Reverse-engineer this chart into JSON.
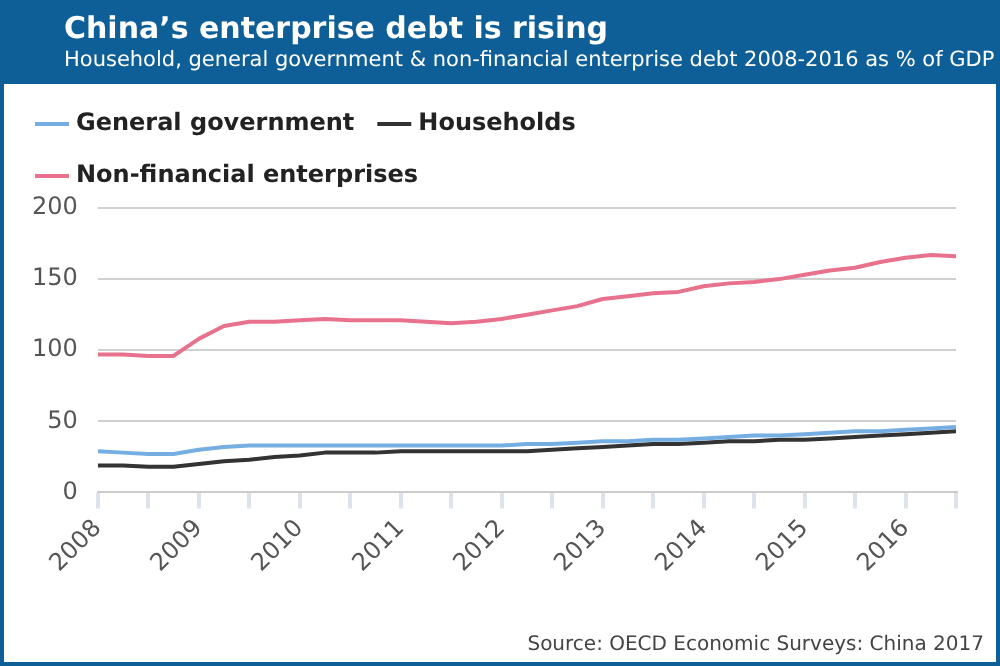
{
  "chart_data": {
    "type": "line",
    "title": "China’s enterprise debt is rising",
    "subtitle": "Household, general government & non-financial enterprise debt 2008-2016 as % of GDP",
    "x": [
      2008,
      2008.25,
      2008.5,
      2008.75,
      2009,
      2009.25,
      2009.5,
      2009.75,
      2010,
      2010.25,
      2010.5,
      2010.75,
      2011,
      2011.25,
      2011.5,
      2011.75,
      2012,
      2012.25,
      2012.5,
      2012.75,
      2013,
      2013.25,
      2013.5,
      2013.75,
      2014,
      2014.25,
      2014.5,
      2014.75,
      2015,
      2015.25,
      2015.5,
      2015.75,
      2016,
      2016.25,
      2016.5
    ],
    "series": [
      {
        "name": "General government",
        "color": "#75aee2",
        "values": [
          29,
          28,
          27,
          27,
          30,
          32,
          33,
          33,
          33,
          33,
          33,
          33,
          33,
          33,
          33,
          33,
          33,
          34,
          34,
          35,
          36,
          36,
          37,
          37,
          38,
          39,
          40,
          40,
          41,
          42,
          43,
          43,
          44,
          45,
          46
        ]
      },
      {
        "name": "Households",
        "color": "#333333",
        "values": [
          19,
          19,
          18,
          18,
          20,
          22,
          23,
          25,
          26,
          28,
          28,
          28,
          29,
          29,
          29,
          29,
          29,
          29,
          30,
          31,
          32,
          33,
          34,
          34,
          35,
          36,
          36,
          37,
          37,
          38,
          39,
          40,
          41,
          42,
          43
        ]
      },
      {
        "name": "Non-financial enterprises",
        "color": "#e8718d",
        "values": [
          97,
          97,
          96,
          96,
          108,
          117,
          120,
          120,
          121,
          122,
          121,
          121,
          121,
          120,
          119,
          120,
          122,
          125,
          128,
          131,
          136,
          138,
          140,
          141,
          145,
          147,
          148,
          150,
          153,
          156,
          158,
          162,
          165,
          167,
          166
        ]
      }
    ],
    "xlim": [
      2008,
      2016.5
    ],
    "xticks": [
      {
        "value": 2008,
        "label": "2008"
      },
      {
        "value": 2008.5,
        "label": null
      },
      {
        "value": 2009,
        "label": "2009"
      },
      {
        "value": 2009.5,
        "label": null
      },
      {
        "value": 2010,
        "label": "2010"
      },
      {
        "value": 2010.5,
        "label": null
      },
      {
        "value": 2011,
        "label": "2011"
      },
      {
        "value": 2011.5,
        "label": null
      },
      {
        "value": 2012,
        "label": "2012"
      },
      {
        "value": 2012.5,
        "label": null
      },
      {
        "value": 2013,
        "label": "2013"
      },
      {
        "value": 2013.5,
        "label": null
      },
      {
        "value": 2014,
        "label": "2014"
      },
      {
        "value": 2014.5,
        "label": null
      },
      {
        "value": 2015,
        "label": "2015"
      },
      {
        "value": 2015.5,
        "label": null
      },
      {
        "value": 2016,
        "label": "2016"
      },
      {
        "value": 2016.5,
        "label": null
      }
    ],
    "ylim": [
      0,
      200
    ],
    "yticks": [
      0,
      50,
      100,
      150,
      200
    ],
    "grid": "y",
    "legend": "top",
    "marker": "none",
    "line_style": "solid",
    "annotations": [
      "Source: OECD Economic Surveys: China 2017"
    ]
  }
}
